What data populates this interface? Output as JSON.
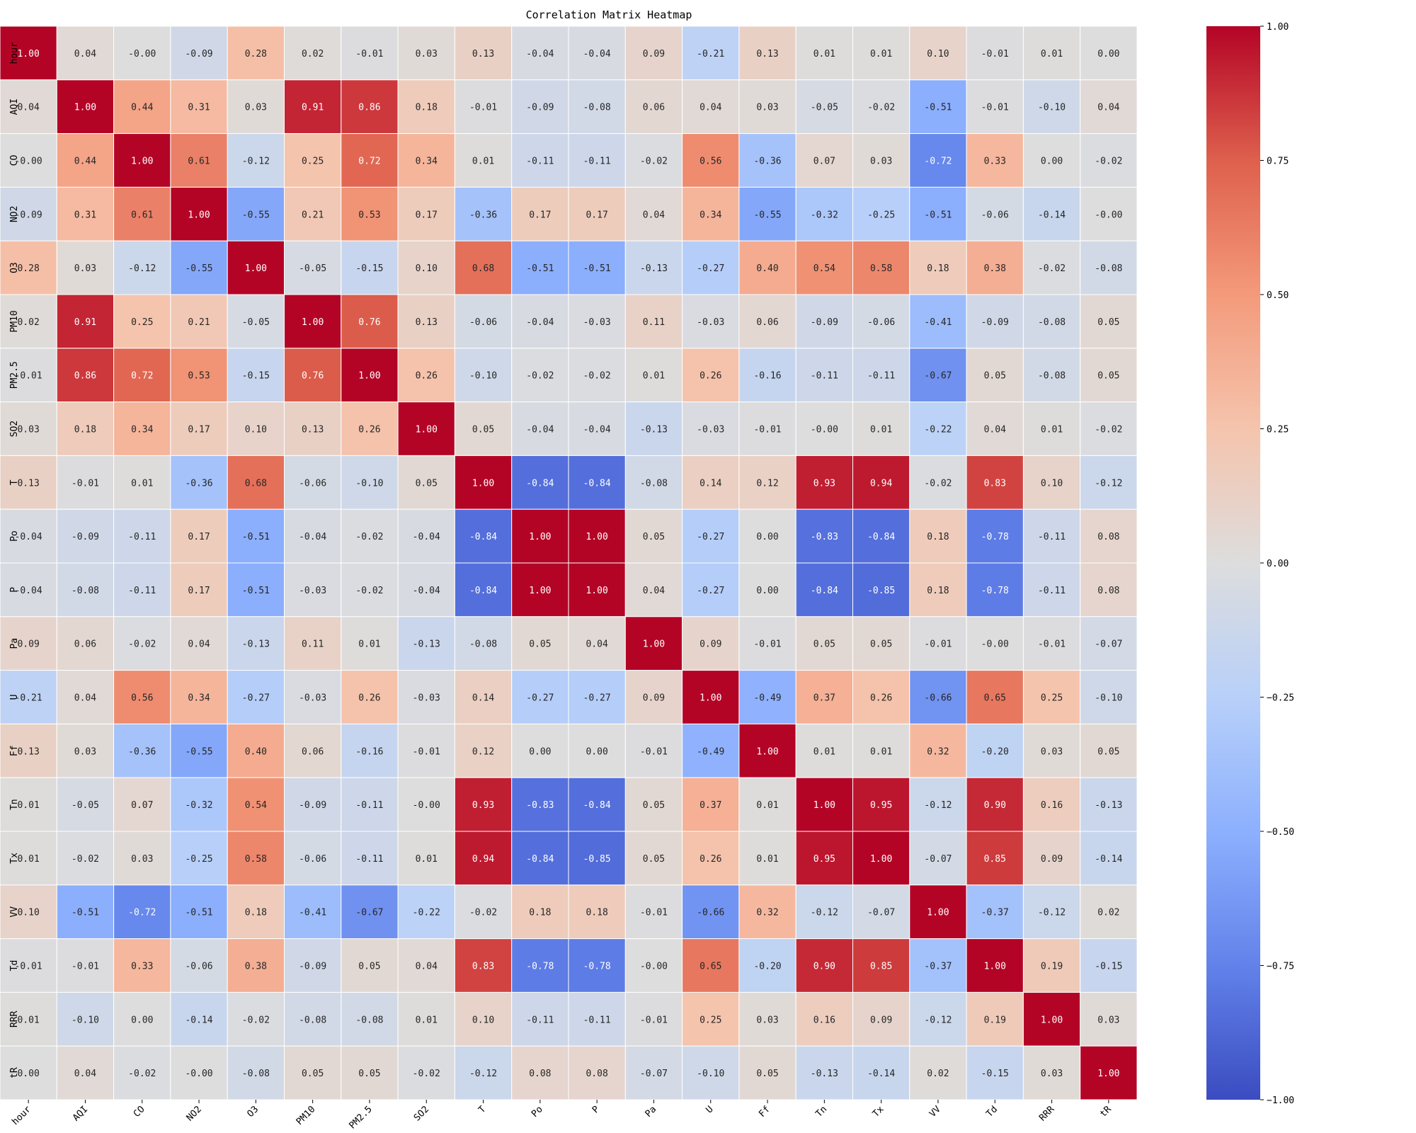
{
  "chart_data": {
    "type": "heatmap",
    "title": "Correlation Matrix Heatmap",
    "colormap": "coolwarm",
    "vmin": -1.0,
    "vmax": 1.0,
    "annotation_format": "0.00",
    "labels": [
      "hour",
      "AQI",
      "CO",
      "NO2",
      "O3",
      "PM10",
      "PM2.5",
      "SO2",
      "T",
      "Po",
      "P",
      "Pa",
      "U",
      "Ff",
      "Tn",
      "Tx",
      "VV",
      "Td",
      "RRR",
      "tR"
    ],
    "matrix": [
      [
        1.0,
        0.04,
        -0.0,
        -0.09,
        0.28,
        0.02,
        -0.01,
        0.03,
        0.13,
        -0.04,
        -0.04,
        0.09,
        -0.21,
        0.13,
        0.01,
        0.01,
        0.1,
        -0.01,
        0.01,
        0.0
      ],
      [
        0.04,
        1.0,
        0.44,
        0.31,
        0.03,
        0.91,
        0.86,
        0.18,
        -0.01,
        -0.09,
        -0.08,
        0.06,
        0.04,
        0.03,
        -0.05,
        -0.02,
        -0.51,
        -0.01,
        -0.1,
        0.04
      ],
      [
        -0.0,
        0.44,
        1.0,
        0.61,
        -0.12,
        0.25,
        0.72,
        0.34,
        0.01,
        -0.11,
        -0.11,
        -0.02,
        0.56,
        -0.36,
        0.07,
        0.03,
        -0.72,
        0.33,
        0.0,
        -0.02
      ],
      [
        -0.09,
        0.31,
        0.61,
        1.0,
        -0.55,
        0.21,
        0.53,
        0.17,
        -0.36,
        0.17,
        0.17,
        0.04,
        0.34,
        -0.55,
        -0.32,
        -0.25,
        -0.51,
        -0.06,
        -0.14,
        -0.0
      ],
      [
        0.28,
        0.03,
        -0.12,
        -0.55,
        1.0,
        -0.05,
        -0.15,
        0.1,
        0.68,
        -0.51,
        -0.51,
        -0.13,
        -0.27,
        0.4,
        0.54,
        0.58,
        0.18,
        0.38,
        -0.02,
        -0.08
      ],
      [
        0.02,
        0.91,
        0.25,
        0.21,
        -0.05,
        1.0,
        0.76,
        0.13,
        -0.06,
        -0.04,
        -0.03,
        0.11,
        -0.03,
        0.06,
        -0.09,
        -0.06,
        -0.41,
        -0.09,
        -0.08,
        0.05
      ],
      [
        -0.01,
        0.86,
        0.72,
        0.53,
        -0.15,
        0.76,
        1.0,
        0.26,
        -0.1,
        -0.02,
        -0.02,
        0.01,
        0.26,
        -0.16,
        -0.11,
        -0.11,
        -0.67,
        0.05,
        -0.08,
        0.05
      ],
      [
        0.03,
        0.18,
        0.34,
        0.17,
        0.1,
        0.13,
        0.26,
        1.0,
        0.05,
        -0.04,
        -0.04,
        -0.13,
        -0.03,
        -0.01,
        -0.0,
        0.01,
        -0.22,
        0.04,
        0.01,
        -0.02
      ],
      [
        0.13,
        -0.01,
        0.01,
        -0.36,
        0.68,
        -0.06,
        -0.1,
        0.05,
        1.0,
        -0.84,
        -0.84,
        -0.08,
        0.14,
        0.12,
        0.93,
        0.94,
        -0.02,
        0.83,
        0.1,
        -0.12
      ],
      [
        -0.04,
        -0.09,
        -0.11,
        0.17,
        -0.51,
        -0.04,
        -0.02,
        -0.04,
        -0.84,
        1.0,
        1.0,
        0.05,
        -0.27,
        0.0,
        -0.83,
        -0.84,
        0.18,
        -0.78,
        -0.11,
        0.08
      ],
      [
        -0.04,
        -0.08,
        -0.11,
        0.17,
        -0.51,
        -0.03,
        -0.02,
        -0.04,
        -0.84,
        1.0,
        1.0,
        0.04,
        -0.27,
        0.0,
        -0.84,
        -0.85,
        0.18,
        -0.78,
        -0.11,
        0.08
      ],
      [
        0.09,
        0.06,
        -0.02,
        0.04,
        -0.13,
        0.11,
        0.01,
        -0.13,
        -0.08,
        0.05,
        0.04,
        1.0,
        0.09,
        -0.01,
        0.05,
        0.05,
        -0.01,
        -0.0,
        -0.01,
        -0.07
      ],
      [
        -0.21,
        0.04,
        0.56,
        0.34,
        -0.27,
        -0.03,
        0.26,
        -0.03,
        0.14,
        -0.27,
        -0.27,
        0.09,
        1.0,
        -0.49,
        0.37,
        0.26,
        -0.66,
        0.65,
        0.25,
        -0.1
      ],
      [
        0.13,
        0.03,
        -0.36,
        -0.55,
        0.4,
        0.06,
        -0.16,
        -0.01,
        0.12,
        0.0,
        0.0,
        -0.01,
        -0.49,
        1.0,
        0.01,
        0.01,
        0.32,
        -0.2,
        0.03,
        0.05
      ],
      [
        0.01,
        -0.05,
        0.07,
        -0.32,
        0.54,
        -0.09,
        -0.11,
        -0.0,
        0.93,
        -0.83,
        -0.84,
        0.05,
        0.37,
        0.01,
        1.0,
        0.95,
        -0.12,
        0.9,
        0.16,
        -0.13
      ],
      [
        0.01,
        -0.02,
        0.03,
        -0.25,
        0.58,
        -0.06,
        -0.11,
        0.01,
        0.94,
        -0.84,
        -0.85,
        0.05,
        0.26,
        0.01,
        0.95,
        1.0,
        -0.07,
        0.85,
        0.09,
        -0.14
      ],
      [
        0.1,
        -0.51,
        -0.72,
        -0.51,
        0.18,
        -0.41,
        -0.67,
        -0.22,
        -0.02,
        0.18,
        0.18,
        -0.01,
        -0.66,
        0.32,
        -0.12,
        -0.07,
        1.0,
        -0.37,
        -0.12,
        0.02
      ],
      [
        -0.01,
        -0.01,
        0.33,
        -0.06,
        0.38,
        -0.09,
        0.05,
        0.04,
        0.83,
        -0.78,
        -0.78,
        -0.0,
        0.65,
        -0.2,
        0.9,
        0.85,
        -0.37,
        1.0,
        0.19,
        -0.15
      ],
      [
        0.01,
        -0.1,
        0.0,
        -0.14,
        -0.02,
        -0.08,
        -0.08,
        0.01,
        0.1,
        -0.11,
        -0.11,
        -0.01,
        0.25,
        0.03,
        0.16,
        0.09,
        -0.12,
        0.19,
        1.0,
        0.03
      ],
      [
        0.0,
        0.04,
        -0.02,
        -0.0,
        -0.08,
        0.05,
        0.05,
        -0.02,
        -0.12,
        0.08,
        0.08,
        -0.07,
        -0.1,
        0.05,
        -0.13,
        -0.14,
        0.02,
        -0.15,
        0.03,
        1.0
      ]
    ],
    "colorbar_ticks": [
      "1.00",
      "0.75",
      "0.50",
      "0.25",
      "0.00",
      "−0.25",
      "−0.50",
      "−0.75",
      "−1.00"
    ],
    "colorbar_tick_values": [
      1.0,
      0.75,
      0.5,
      0.25,
      0.0,
      -0.25,
      -0.5,
      -0.75,
      -1.0
    ]
  }
}
